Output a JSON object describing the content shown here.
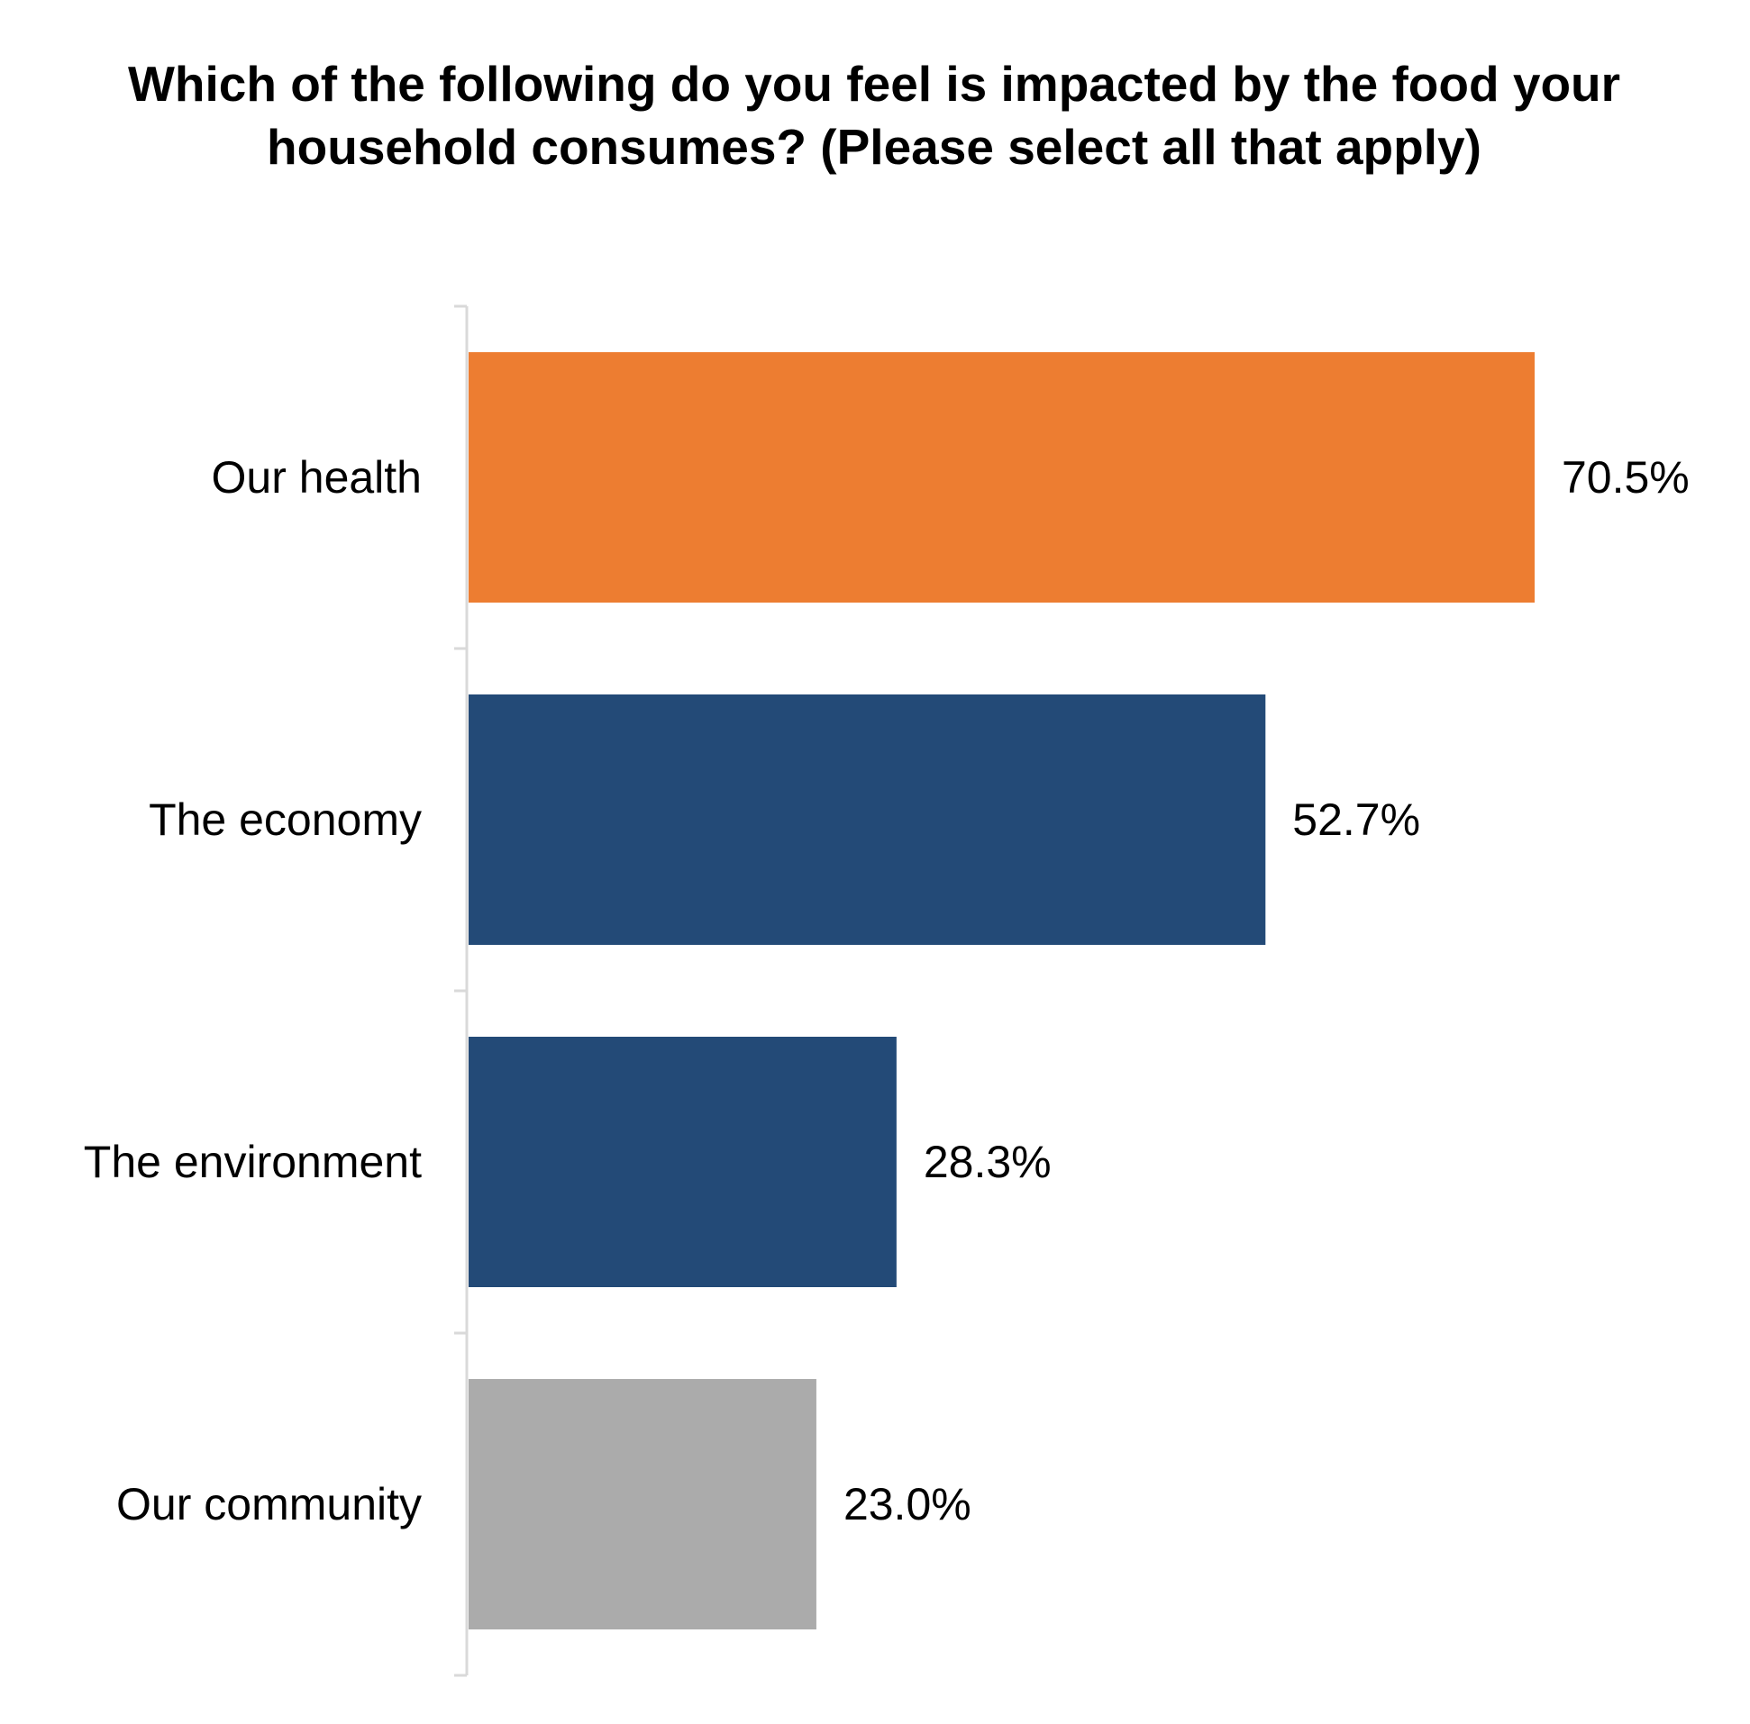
{
  "chart_data": {
    "type": "bar",
    "orientation": "horizontal",
    "title": "Which of the following do you feel is impacted by the food your household consumes? (Please select all that apply)",
    "categories": [
      "Our health",
      "The economy",
      "The environment",
      "Our community"
    ],
    "values": [
      70.5,
      52.7,
      28.3,
      23.0
    ],
    "value_labels": [
      "70.5%",
      "52.7%",
      "28.3%",
      "23.0%"
    ],
    "colors": [
      "#ED7D31",
      "#234A77",
      "#234A77",
      "#ABABAB"
    ],
    "axis_color": "#D9D9D9",
    "xlim": [
      0,
      100
    ],
    "grid": false,
    "legend": "none"
  }
}
